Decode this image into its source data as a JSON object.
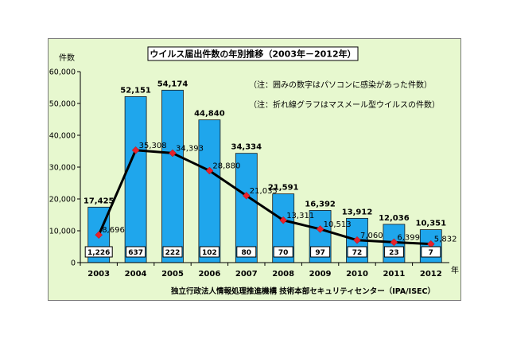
{
  "chart_data": {
    "type": "bar",
    "title": "ウイルス届出件数の年別推移（2003年－2012年）",
    "ylabel": "件数",
    "xlabel": "年",
    "ylim": [
      0,
      60000
    ],
    "yticks": [
      "0",
      "10,000",
      "20,000",
      "30,000",
      "40,000",
      "50,000",
      "60,000"
    ],
    "categories": [
      "2003",
      "2004",
      "2005",
      "2006",
      "2007",
      "2008",
      "2009",
      "2010",
      "2011",
      "2012"
    ],
    "series": [
      {
        "type": "bar",
        "values": [
          17425,
          52151,
          54174,
          44840,
          34334,
          21591,
          16392,
          13912,
          12036,
          10351
        ],
        "value_labels": [
          "17,425",
          "52,151",
          "54,174",
          "44,840",
          "34,334",
          "21,591",
          "16,392",
          "13,912",
          "12,036",
          "10,351"
        ],
        "color": "#1fa6ec"
      },
      {
        "type": "line",
        "values": [
          8696,
          35308,
          34393,
          28880,
          21035,
          13311,
          10513,
          7060,
          6399,
          5832
        ],
        "value_labels": [
          "8,696",
          "35,308",
          "34,393",
          "28,880",
          "21,035",
          "13,311",
          "10,513",
          "7,060",
          "6,399",
          "5,832"
        ],
        "color": "#000000",
        "marker_color": "#e8202a"
      }
    ],
    "box_values": [
      "1,226",
      "637",
      "222",
      "102",
      "80",
      "70",
      "97",
      "72",
      "23",
      "7"
    ],
    "notes": [
      "（注：囲みの数字はパソコンに感染があった件数）",
      "（注：折れ線グラフはマスメール型ウイルスの件数）"
    ],
    "source": "独立行政法人情報処理推進機構 技術本部セキュリティセンター（IPA/ISEC）",
    "grid": false,
    "background": "#e7f8cf"
  }
}
